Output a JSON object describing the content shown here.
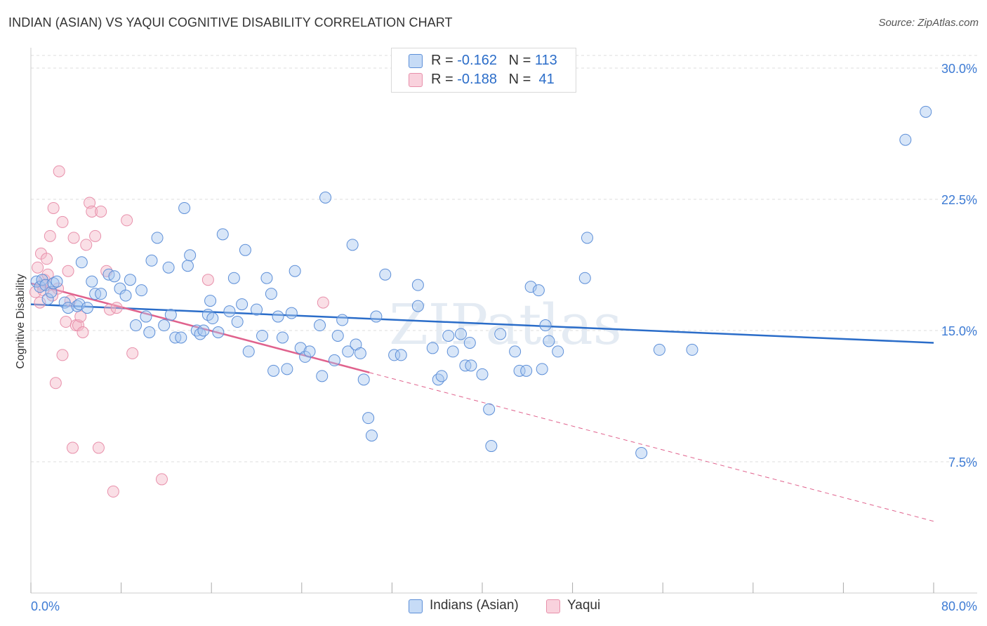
{
  "title": "INDIAN (ASIAN) VS YAQUI COGNITIVE DISABILITY CORRELATION CHART",
  "source": "Source: ZipAtlas.com",
  "watermark": "ZIPatlas",
  "colors": {
    "blue_fill": "#a8c8f0",
    "blue_stroke": "#5d8fd8",
    "blue_line": "#2b6dc9",
    "pink_fill": "#f5b8c8",
    "pink_stroke": "#e890ab",
    "pink_line": "#e0628d",
    "axis_text": "#3d7bd4",
    "grid": "#dddddd"
  },
  "legend": {
    "rows": [
      {
        "r_label": "R = ",
        "r_value": "-0.162",
        "n_label": "N = ",
        "n_value": "113"
      },
      {
        "r_label": "R = ",
        "r_value": "-0.188",
        "n_label": "N = ",
        "n_value": " 41"
      }
    ]
  },
  "bottom_legend": [
    "Indians (Asian)",
    "Yaqui"
  ],
  "chart_data": {
    "type": "scatter",
    "title": "INDIAN (ASIAN) VS YAQUI COGNITIVE DISABILITY CORRELATION CHART",
    "ylabel": "Cognitive Disability",
    "xlabel": "",
    "xlim": [
      0,
      80
    ],
    "ylim": [
      0,
      30
    ],
    "x_tick_labels": [
      "0.0%",
      "80.0%"
    ],
    "y_tick_labels": [
      "7.5%",
      "15.0%",
      "22.5%",
      "30.0%"
    ],
    "y_ticks": [
      7.5,
      15.0,
      22.5,
      30.0
    ],
    "grid": true,
    "legend_position": "top-center",
    "series": [
      {
        "name": "Indians (Asian)",
        "R": -0.162,
        "N": 113,
        "trend": {
          "x": [
            0,
            80
          ],
          "y": [
            16.5,
            14.3
          ]
        },
        "points": [
          [
            0.5,
            17.8
          ],
          [
            0.8,
            17.5
          ],
          [
            1.0,
            17.9
          ],
          [
            1.3,
            17.6
          ],
          [
            1.5,
            16.8
          ],
          [
            1.8,
            17.2
          ],
          [
            2.0,
            17.7
          ],
          [
            2.3,
            17.8
          ],
          [
            3.0,
            16.6
          ],
          [
            3.3,
            16.3
          ],
          [
            4.1,
            16.4
          ],
          [
            4.3,
            16.5
          ],
          [
            4.5,
            18.9
          ],
          [
            5.0,
            16.3
          ],
          [
            5.4,
            17.8
          ],
          [
            5.7,
            17.1
          ],
          [
            6.2,
            17.1
          ],
          [
            6.9,
            18.2
          ],
          [
            7.4,
            18.1
          ],
          [
            7.9,
            17.4
          ],
          [
            8.4,
            17.0
          ],
          [
            8.8,
            17.9
          ],
          [
            9.3,
            15.3
          ],
          [
            9.8,
            17.3
          ],
          [
            10.2,
            15.8
          ],
          [
            10.5,
            14.9
          ],
          [
            10.7,
            19.0
          ],
          [
            11.2,
            20.3
          ],
          [
            11.8,
            15.3
          ],
          [
            12.2,
            18.6
          ],
          [
            12.4,
            15.9
          ],
          [
            12.8,
            14.6
          ],
          [
            13.3,
            14.6
          ],
          [
            13.6,
            22.0
          ],
          [
            13.9,
            18.7
          ],
          [
            14.1,
            19.3
          ],
          [
            14.7,
            15.0
          ],
          [
            15.0,
            14.8
          ],
          [
            15.3,
            15.0
          ],
          [
            15.7,
            15.9
          ],
          [
            15.9,
            16.7
          ],
          [
            16.1,
            15.7
          ],
          [
            16.6,
            14.9
          ],
          [
            17.0,
            20.5
          ],
          [
            17.6,
            16.1
          ],
          [
            18.0,
            18.0
          ],
          [
            18.3,
            15.5
          ],
          [
            18.7,
            16.5
          ],
          [
            19.0,
            19.6
          ],
          [
            19.3,
            13.8
          ],
          [
            20.0,
            16.2
          ],
          [
            20.5,
            14.7
          ],
          [
            20.9,
            18.0
          ],
          [
            21.3,
            17.1
          ],
          [
            21.5,
            12.7
          ],
          [
            21.9,
            15.8
          ],
          [
            22.3,
            14.6
          ],
          [
            22.7,
            12.8
          ],
          [
            23.1,
            16.0
          ],
          [
            23.4,
            18.4
          ],
          [
            23.9,
            14.0
          ],
          [
            24.3,
            13.5
          ],
          [
            24.7,
            13.8
          ],
          [
            25.6,
            15.3
          ],
          [
            25.8,
            12.4
          ],
          [
            26.1,
            22.6
          ],
          [
            26.9,
            13.3
          ],
          [
            27.2,
            14.7
          ],
          [
            27.6,
            15.6
          ],
          [
            28.1,
            13.8
          ],
          [
            28.5,
            19.9
          ],
          [
            28.8,
            14.2
          ],
          [
            29.2,
            13.7
          ],
          [
            29.5,
            12.2
          ],
          [
            29.9,
            10.0
          ],
          [
            30.2,
            9.0
          ],
          [
            30.6,
            15.8
          ],
          [
            31.4,
            18.2
          ],
          [
            32.2,
            13.6
          ],
          [
            32.8,
            13.6
          ],
          [
            34.3,
            17.6
          ],
          [
            34.3,
            16.4
          ],
          [
            35.6,
            14.0
          ],
          [
            36.1,
            12.2
          ],
          [
            36.4,
            12.4
          ],
          [
            37.0,
            14.7
          ],
          [
            37.4,
            13.8
          ],
          [
            38.1,
            14.8
          ],
          [
            38.5,
            13.0
          ],
          [
            38.9,
            14.3
          ],
          [
            39.0,
            13.0
          ],
          [
            40.0,
            12.5
          ],
          [
            40.6,
            10.5
          ],
          [
            40.8,
            8.4
          ],
          [
            41.6,
            14.8
          ],
          [
            42.9,
            13.8
          ],
          [
            43.3,
            12.7
          ],
          [
            43.9,
            12.7
          ],
          [
            44.3,
            17.5
          ],
          [
            45.0,
            17.3
          ],
          [
            45.3,
            12.8
          ],
          [
            45.6,
            15.3
          ],
          [
            45.9,
            14.4
          ],
          [
            46.7,
            13.8
          ],
          [
            49.3,
            20.3
          ],
          [
            49.1,
            18.0
          ],
          [
            54.1,
            8.0
          ],
          [
            55.7,
            13.9
          ],
          [
            58.6,
            13.9
          ],
          [
            77.5,
            25.9
          ],
          [
            79.3,
            27.5
          ]
        ]
      },
      {
        "name": "Yaqui",
        "R": -0.188,
        "N": 41,
        "trend": {
          "x": [
            0,
            30
          ],
          "y": [
            17.7,
            12.6
          ],
          "dashed_extension": {
            "x": [
              30,
              80
            ],
            "y": [
              12.6,
              4.1
            ]
          }
        },
        "points": [
          [
            0.4,
            17.2
          ],
          [
            0.6,
            18.6
          ],
          [
            0.8,
            16.6
          ],
          [
            0.9,
            19.4
          ],
          [
            1.0,
            17.6
          ],
          [
            1.2,
            17.9
          ],
          [
            1.4,
            19.1
          ],
          [
            1.5,
            18.2
          ],
          [
            1.7,
            20.4
          ],
          [
            1.9,
            17.0
          ],
          [
            2.0,
            22.0
          ],
          [
            2.2,
            12.0
          ],
          [
            2.4,
            17.4
          ],
          [
            2.5,
            24.1
          ],
          [
            2.8,
            13.6
          ],
          [
            2.8,
            21.2
          ],
          [
            3.1,
            15.5
          ],
          [
            3.3,
            18.4
          ],
          [
            3.5,
            16.7
          ],
          [
            3.7,
            8.3
          ],
          [
            3.8,
            20.3
          ],
          [
            4.0,
            15.3
          ],
          [
            4.2,
            15.3
          ],
          [
            4.4,
            15.8
          ],
          [
            4.6,
            14.9
          ],
          [
            4.9,
            19.9
          ],
          [
            5.2,
            22.3
          ],
          [
            5.4,
            21.8
          ],
          [
            5.7,
            20.4
          ],
          [
            6.0,
            8.3
          ],
          [
            6.2,
            21.8
          ],
          [
            6.7,
            18.4
          ],
          [
            7.0,
            16.2
          ],
          [
            7.3,
            5.8
          ],
          [
            7.6,
            16.3
          ],
          [
            8.5,
            21.3
          ],
          [
            9.0,
            13.7
          ],
          [
            11.6,
            6.5
          ],
          [
            15.7,
            17.9
          ],
          [
            25.9,
            16.6
          ],
          [
            1.1,
            17.3
          ]
        ]
      }
    ]
  }
}
